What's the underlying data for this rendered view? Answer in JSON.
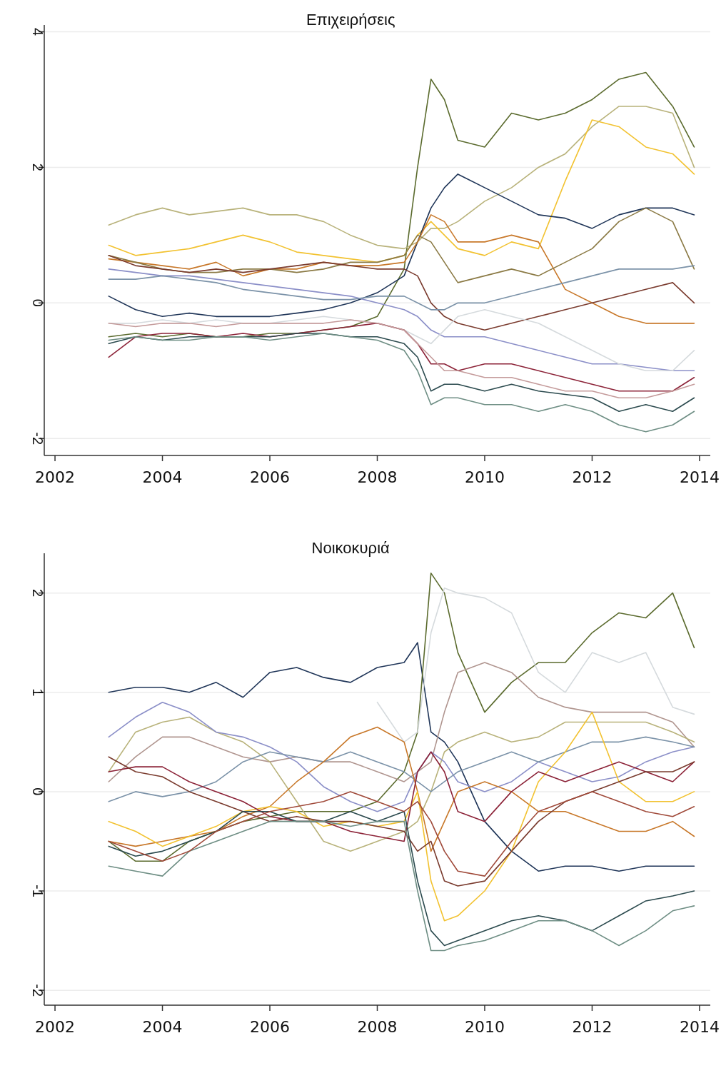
{
  "chart_data": [
    {
      "type": "line",
      "title": "Επιχειρήσεις",
      "grid": "y",
      "xlim": [
        2001.8,
        2014.2
      ],
      "xticks": [
        2002,
        2004,
        2006,
        2008,
        2010,
        2012,
        2014
      ],
      "ylim": [
        -2.25,
        4.1
      ],
      "yticks": [
        -2,
        0,
        2,
        4
      ],
      "x": [
        2003,
        2003.5,
        2004,
        2004.5,
        2005,
        2005.5,
        2006,
        2006.5,
        2007,
        2007.5,
        2008,
        2008.5,
        2008.75,
        2009,
        2009.25,
        2009.5,
        2010,
        2010.5,
        2011,
        2011.5,
        2012,
        2012.5,
        2013,
        2013.5,
        2013.9
      ],
      "series": [
        {
          "color": "#5b6b2e",
          "values": [
            -0.5,
            -0.45,
            -0.5,
            -0.45,
            -0.5,
            -0.5,
            -0.45,
            -0.45,
            -0.4,
            -0.35,
            -0.2,
            0.5,
            2.0,
            3.3,
            3.0,
            2.4,
            2.3,
            2.8,
            2.7,
            2.8,
            3.0,
            3.3,
            3.4,
            2.9,
            2.3
          ]
        },
        {
          "color": "#b8b27a",
          "values": [
            1.15,
            1.3,
            1.4,
            1.3,
            1.35,
            1.4,
            1.3,
            1.3,
            1.2,
            1.0,
            0.85,
            0.8,
            0.9,
            1.1,
            1.1,
            1.2,
            1.5,
            1.7,
            2.0,
            2.2,
            2.6,
            2.9,
            2.9,
            2.8,
            2.0
          ]
        },
        {
          "color": "#f2c230",
          "values": [
            0.85,
            0.7,
            0.75,
            0.8,
            0.9,
            1.0,
            0.9,
            0.75,
            0.7,
            0.65,
            0.6,
            0.7,
            1.0,
            1.2,
            1.0,
            0.8,
            0.7,
            0.9,
            0.8,
            1.8,
            2.7,
            2.6,
            2.3,
            2.2,
            1.9
          ]
        },
        {
          "color": "#1f3558",
          "values": [
            0.1,
            -0.1,
            -0.2,
            -0.15,
            -0.2,
            -0.2,
            -0.2,
            -0.15,
            -0.1,
            0,
            0.15,
            0.4,
            0.9,
            1.4,
            1.7,
            1.9,
            1.7,
            1.5,
            1.3,
            1.25,
            1.1,
            1.3,
            1.4,
            1.4,
            1.3
          ]
        },
        {
          "color": "#c8782a",
          "values": [
            0.65,
            0.6,
            0.55,
            0.5,
            0.6,
            0.4,
            0.5,
            0.5,
            0.6,
            0.55,
            0.55,
            0.6,
            0.9,
            1.3,
            1.2,
            0.9,
            0.9,
            1.0,
            0.9,
            0.2,
            0.0,
            -0.2,
            -0.3,
            -0.3,
            -0.3
          ]
        },
        {
          "color": "#8b7a45",
          "values": [
            0.7,
            0.6,
            0.5,
            0.45,
            0.45,
            0.5,
            0.5,
            0.45,
            0.5,
            0.6,
            0.6,
            0.7,
            1.0,
            0.9,
            0.6,
            0.3,
            0.4,
            0.5,
            0.4,
            0.6,
            0.8,
            1.2,
            1.4,
            1.2,
            0.5
          ]
        },
        {
          "color": "#7a3b2e",
          "values": [
            0.7,
            0.55,
            0.5,
            0.45,
            0.5,
            0.45,
            0.5,
            0.55,
            0.6,
            0.55,
            0.5,
            0.5,
            0.4,
            0.0,
            -0.2,
            -0.3,
            -0.4,
            -0.3,
            -0.2,
            -0.1,
            0.0,
            0.1,
            0.2,
            0.3,
            0.0
          ]
        },
        {
          "color": "#8b8fc8",
          "values": [
            0.5,
            0.45,
            0.4,
            0.4,
            0.35,
            0.3,
            0.25,
            0.2,
            0.15,
            0.1,
            0.0,
            -0.1,
            -0.2,
            -0.4,
            -0.5,
            -0.5,
            -0.5,
            -0.6,
            -0.7,
            -0.8,
            -0.9,
            -0.9,
            -0.95,
            -1.0,
            -1.0
          ]
        },
        {
          "color": "#7b92a8",
          "values": [
            0.35,
            0.35,
            0.4,
            0.35,
            0.3,
            0.2,
            0.15,
            0.1,
            0.05,
            0.05,
            0.1,
            0.1,
            0.0,
            -0.1,
            -0.1,
            0.0,
            0.0,
            0.1,
            0.2,
            0.3,
            0.4,
            0.5,
            0.5,
            0.5,
            0.55
          ]
        },
        {
          "color": "#d5dadd",
          "values": [
            -0.3,
            -0.3,
            -0.25,
            -0.3,
            -0.25,
            -0.3,
            -0.3,
            -0.25,
            -0.2,
            -0.25,
            -0.3,
            -0.4,
            -0.5,
            -0.6,
            -0.4,
            -0.2,
            -0.1,
            -0.2,
            -0.3,
            -0.5,
            -0.7,
            -0.9,
            -1.0,
            -1.0,
            -0.7
          ]
        },
        {
          "color": "#8c2338",
          "values": [
            -0.8,
            -0.5,
            -0.45,
            -0.45,
            -0.5,
            -0.45,
            -0.5,
            -0.45,
            -0.4,
            -0.35,
            -0.3,
            -0.4,
            -0.6,
            -0.9,
            -0.9,
            -1.0,
            -0.9,
            -0.9,
            -1.0,
            -1.1,
            -1.2,
            -1.3,
            -1.3,
            -1.3,
            -1.1
          ]
        },
        {
          "color": "#c49a9a",
          "values": [
            -0.3,
            -0.35,
            -0.3,
            -0.3,
            -0.35,
            -0.3,
            -0.3,
            -0.3,
            -0.3,
            -0.25,
            -0.3,
            -0.4,
            -0.6,
            -0.8,
            -1.0,
            -1.0,
            -1.1,
            -1.1,
            -1.2,
            -1.3,
            -1.3,
            -1.4,
            -1.4,
            -1.3,
            -1.2
          ]
        },
        {
          "color": "#2b4a4e",
          "values": [
            -0.6,
            -0.5,
            -0.55,
            -0.5,
            -0.5,
            -0.5,
            -0.5,
            -0.45,
            -0.45,
            -0.5,
            -0.5,
            -0.6,
            -0.8,
            -1.3,
            -1.2,
            -1.2,
            -1.3,
            -1.2,
            -1.3,
            -1.35,
            -1.4,
            -1.6,
            -1.5,
            -1.6,
            -1.4
          ]
        },
        {
          "color": "#6e8e84",
          "values": [
            -0.55,
            -0.5,
            -0.55,
            -0.55,
            -0.5,
            -0.5,
            -0.55,
            -0.5,
            -0.45,
            -0.5,
            -0.55,
            -0.7,
            -1.0,
            -1.5,
            -1.4,
            -1.4,
            -1.5,
            -1.5,
            -1.6,
            -1.5,
            -1.6,
            -1.8,
            -1.9,
            -1.8,
            -1.6
          ]
        }
      ]
    },
    {
      "type": "line",
      "title": "Νοικοκυριά",
      "grid": "y",
      "xlim": [
        2001.8,
        2014.2
      ],
      "xticks": [
        2002,
        2004,
        2006,
        2008,
        2010,
        2012,
        2014
      ],
      "ylim": [
        -2.15,
        2.4
      ],
      "yticks": [
        -2,
        -1,
        0,
        1,
        2
      ],
      "x": [
        2003,
        2003.5,
        2004,
        2004.5,
        2005,
        2005.5,
        2006,
        2006.5,
        2007,
        2007.5,
        2008,
        2008.5,
        2008.75,
        2009,
        2009.25,
        2009.5,
        2010,
        2010.5,
        2011,
        2011.5,
        2012,
        2012.5,
        2013,
        2013.5,
        2013.9
      ],
      "series": [
        {
          "color": "#1f3558",
          "values": [
            1.0,
            1.05,
            1.05,
            1.0,
            1.1,
            0.95,
            1.2,
            1.25,
            1.15,
            1.1,
            1.25,
            1.3,
            1.5,
            0.6,
            0.5,
            0.3,
            -0.3,
            -0.6,
            -0.8,
            -0.75,
            -0.75,
            -0.8,
            -0.75,
            -0.75,
            -0.75
          ]
        },
        {
          "color": "#5b6b2e",
          "values": [
            -0.5,
            -0.7,
            -0.7,
            -0.5,
            -0.4,
            -0.3,
            -0.25,
            -0.2,
            -0.2,
            -0.2,
            -0.1,
            0.2,
            0.6,
            2.2,
            2.0,
            1.4,
            0.8,
            1.1,
            1.3,
            1.3,
            1.6,
            1.8,
            1.75,
            2.0,
            1.45
          ]
        },
        {
          "color": "#d5dadd",
          "values": [
            null,
            null,
            null,
            null,
            null,
            null,
            null,
            null,
            null,
            null,
            0.9,
            0.5,
            0.6,
            1.6,
            2.05,
            2.0,
            1.95,
            1.8,
            1.2,
            1.0,
            1.4,
            1.3,
            1.4,
            0.85,
            0.78
          ]
        },
        {
          "color": "#b0958f",
          "values": [
            0.1,
            0.35,
            0.55,
            0.55,
            0.45,
            0.35,
            0.3,
            0.35,
            0.3,
            0.3,
            0.2,
            0.1,
            0.2,
            0.3,
            0.8,
            1.2,
            1.3,
            1.2,
            0.95,
            0.85,
            0.8,
            0.8,
            0.8,
            0.7,
            0.45
          ]
        },
        {
          "color": "#b8b27a",
          "values": [
            0.2,
            0.6,
            0.7,
            0.75,
            0.6,
            0.5,
            0.3,
            -0.1,
            -0.5,
            -0.6,
            -0.5,
            -0.4,
            -0.3,
            0.0,
            0.4,
            0.5,
            0.6,
            0.5,
            0.55,
            0.7,
            0.7,
            0.7,
            0.7,
            0.6,
            0.5
          ]
        },
        {
          "color": "#8b8fc8",
          "values": [
            0.55,
            0.75,
            0.9,
            0.8,
            0.6,
            0.55,
            0.45,
            0.3,
            0.05,
            -0.1,
            -0.2,
            -0.1,
            0.2,
            0.4,
            0.3,
            0.1,
            0.0,
            0.1,
            0.3,
            0.2,
            0.1,
            0.15,
            0.3,
            0.4,
            0.45
          ]
        },
        {
          "color": "#7b92a8",
          "values": [
            -0.1,
            0.0,
            -0.05,
            0.0,
            0.1,
            0.3,
            0.4,
            0.35,
            0.3,
            0.4,
            0.3,
            0.2,
            0.1,
            0.0,
            0.1,
            0.2,
            0.3,
            0.4,
            0.3,
            0.4,
            0.5,
            0.5,
            0.55,
            0.5,
            0.45
          ]
        },
        {
          "color": "#c8782a",
          "values": [
            -0.5,
            -0.55,
            -0.5,
            -0.45,
            -0.4,
            -0.25,
            -0.15,
            0.1,
            0.3,
            0.55,
            0.65,
            0.5,
            0.0,
            -0.6,
            -0.3,
            0.0,
            0.1,
            0.0,
            -0.2,
            -0.2,
            -0.3,
            -0.4,
            -0.4,
            -0.3,
            -0.45
          ]
        },
        {
          "color": "#f2c230",
          "values": [
            -0.3,
            -0.4,
            -0.55,
            -0.45,
            -0.35,
            -0.2,
            -0.15,
            -0.2,
            -0.35,
            -0.3,
            -0.35,
            -0.3,
            0.0,
            -0.9,
            -1.3,
            -1.25,
            -1.0,
            -0.6,
            0.1,
            0.4,
            0.8,
            0.1,
            -0.1,
            -0.1,
            0.0
          ]
        },
        {
          "color": "#8c2338",
          "values": [
            0.2,
            0.25,
            0.25,
            0.1,
            0.0,
            -0.1,
            -0.25,
            -0.3,
            -0.3,
            -0.4,
            -0.45,
            -0.5,
            0.2,
            0.4,
            0.2,
            -0.2,
            -0.3,
            0.0,
            0.2,
            0.1,
            0.2,
            0.3,
            0.2,
            0.1,
            0.3
          ]
        },
        {
          "color": "#7a3b2e",
          "values": [
            0.35,
            0.2,
            0.15,
            0.0,
            -0.1,
            -0.2,
            -0.3,
            -0.25,
            -0.3,
            -0.3,
            -0.35,
            -0.4,
            -0.6,
            -0.5,
            -0.9,
            -0.95,
            -0.9,
            -0.6,
            -0.3,
            -0.1,
            0.0,
            0.1,
            0.2,
            0.2,
            0.3
          ]
        },
        {
          "color": "#2b4a4e",
          "values": [
            -0.55,
            -0.65,
            -0.6,
            -0.5,
            -0.4,
            -0.2,
            -0.2,
            -0.3,
            -0.3,
            -0.2,
            -0.3,
            -0.2,
            -0.9,
            -1.4,
            -1.55,
            -1.5,
            -1.4,
            -1.3,
            -1.25,
            -1.3,
            -1.4,
            -1.25,
            -1.1,
            -1.05,
            -1.0
          ]
        },
        {
          "color": "#6e8e84",
          "values": [
            -0.75,
            -0.8,
            -0.85,
            -0.6,
            -0.5,
            -0.4,
            -0.3,
            -0.3,
            -0.3,
            -0.35,
            -0.3,
            -0.3,
            -1.0,
            -1.6,
            -1.6,
            -1.55,
            -1.5,
            -1.4,
            -1.3,
            -1.3,
            -1.4,
            -1.55,
            -1.4,
            -1.2,
            -1.15
          ]
        },
        {
          "color": "#a04a3a",
          "values": [
            -0.5,
            -0.6,
            -0.7,
            -0.6,
            -0.4,
            -0.3,
            -0.2,
            -0.15,
            -0.1,
            0.0,
            -0.1,
            -0.2,
            -0.1,
            -0.3,
            -0.6,
            -0.8,
            -0.85,
            -0.5,
            -0.2,
            -0.1,
            0.0,
            -0.1,
            -0.2,
            -0.25,
            -0.15
          ]
        }
      ]
    }
  ]
}
